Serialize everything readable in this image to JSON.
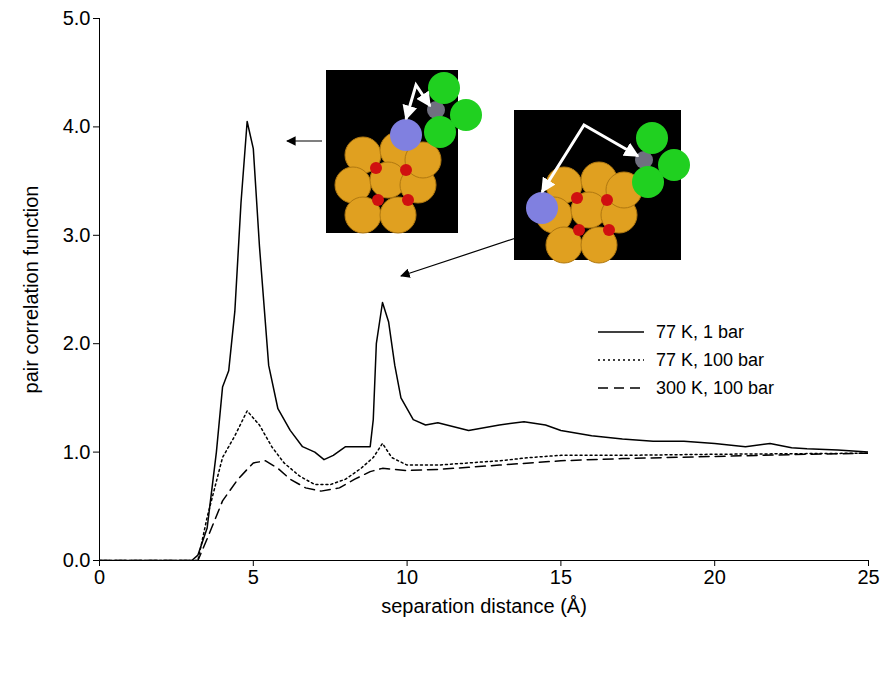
{
  "chart_data": {
    "type": "line",
    "x_label": "separation distance (Å)",
    "y_label": "pair correlation function",
    "xlim": [
      0,
      25
    ],
    "xticks": [
      0,
      5,
      10,
      15,
      20,
      25
    ],
    "ylim": [
      0,
      5
    ],
    "yticks": [
      0,
      1,
      2,
      3,
      4,
      5
    ],
    "grid": false,
    "legend": "right",
    "series": [
      {
        "name": "77 K, 1 bar",
        "color": "#000000",
        "line_style": "solid",
        "x": [
          0,
          3.0,
          3.2,
          3.5,
          3.8,
          4.0,
          4.2,
          4.4,
          4.6,
          4.8,
          5.0,
          5.2,
          5.5,
          5.8,
          6.2,
          6.6,
          7.0,
          7.3,
          7.6,
          8.0,
          8.5,
          8.8,
          8.9,
          9.0,
          9.2,
          9.4,
          9.6,
          9.8,
          10.2,
          10.6,
          11,
          12,
          13,
          13.8,
          14.5,
          15,
          16,
          17,
          18,
          19,
          20,
          21,
          21.8,
          22.5,
          23,
          24,
          25
        ],
        "values": [
          0,
          0,
          0.05,
          0.3,
          1.0,
          1.6,
          1.75,
          2.3,
          3.3,
          4.05,
          3.8,
          2.9,
          1.8,
          1.4,
          1.2,
          1.05,
          1.0,
          0.93,
          0.97,
          1.05,
          1.05,
          1.05,
          1.3,
          2.0,
          2.38,
          2.2,
          1.8,
          1.5,
          1.3,
          1.25,
          1.27,
          1.2,
          1.25,
          1.28,
          1.25,
          1.2,
          1.15,
          1.12,
          1.1,
          1.1,
          1.08,
          1.05,
          1.08,
          1.04,
          1.03,
          1.02,
          1.0
        ]
      },
      {
        "name": "77 K, 100 bar",
        "color": "#000000",
        "line_style": "dotted",
        "x": [
          0,
          3.2,
          3.5,
          4.0,
          4.4,
          4.8,
          5.2,
          5.6,
          6.0,
          6.5,
          7.0,
          7.5,
          8.0,
          8.5,
          8.9,
          9.2,
          9.5,
          10,
          11,
          12,
          13,
          14,
          15,
          17,
          20,
          25
        ],
        "values": [
          0,
          0,
          0.4,
          0.95,
          1.15,
          1.38,
          1.25,
          1.05,
          0.9,
          0.78,
          0.7,
          0.7,
          0.75,
          0.85,
          0.95,
          1.08,
          0.95,
          0.88,
          0.88,
          0.9,
          0.92,
          0.95,
          0.97,
          0.97,
          0.98,
          0.99
        ]
      },
      {
        "name": "300 K, 100 bar",
        "color": "#000000",
        "line_style": "dashed",
        "x": [
          0,
          3.2,
          3.5,
          4.0,
          4.5,
          5.0,
          5.4,
          5.8,
          6.2,
          6.7,
          7.2,
          7.8,
          8.3,
          8.8,
          9.2,
          10,
          11,
          12,
          13,
          15,
          17,
          20,
          23,
          25
        ],
        "values": [
          0,
          0,
          0.2,
          0.55,
          0.75,
          0.9,
          0.92,
          0.85,
          0.75,
          0.67,
          0.64,
          0.67,
          0.75,
          0.82,
          0.85,
          0.83,
          0.84,
          0.86,
          0.88,
          0.92,
          0.94,
          0.96,
          0.98,
          0.99
        ]
      }
    ]
  }
}
